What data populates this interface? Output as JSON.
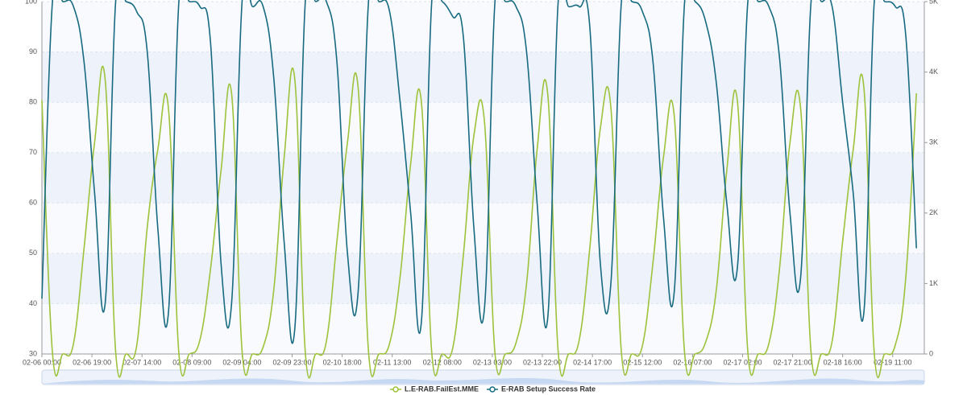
{
  "chart_data": {
    "type": "line",
    "x": [
      0,
      4,
      8,
      12,
      16,
      20,
      24,
      28,
      32,
      36,
      40,
      44,
      48,
      52,
      56,
      60,
      64,
      68,
      72,
      76,
      80,
      84,
      88,
      92,
      96,
      100,
      104,
      108,
      112,
      116,
      120,
      124,
      128,
      132,
      136,
      140,
      144,
      148,
      152,
      156,
      160,
      164,
      168,
      172,
      176,
      180,
      184,
      188,
      192,
      196,
      200,
      204,
      208,
      212,
      216,
      220,
      224,
      228,
      232,
      236,
      240,
      244,
      248,
      252,
      256,
      260,
      264,
      268,
      272,
      276,
      280,
      284,
      288,
      292,
      296,
      300,
      304,
      308,
      312,
      316,
      320,
      324,
      328,
      332
    ],
    "xlim": [
      0,
      335
    ],
    "xticks": [
      {
        "value": 0,
        "label": "02-06 00:00"
      },
      {
        "value": 19,
        "label": "02-06 19:00"
      },
      {
        "value": 38,
        "label": "02-07 14:00"
      },
      {
        "value": 57,
        "label": "02-08 09:00"
      },
      {
        "value": 76,
        "label": "02-09 04:00"
      },
      {
        "value": 95,
        "label": "02-09 23:00"
      },
      {
        "value": 114,
        "label": "02-10 18:00"
      },
      {
        "value": 133,
        "label": "02-11 13:00"
      },
      {
        "value": 152,
        "label": "02-12 08:00"
      },
      {
        "value": 171,
        "label": "02-13 03:00"
      },
      {
        "value": 190,
        "label": "02-13 22:00"
      },
      {
        "value": 209,
        "label": "02-14 17:00"
      },
      {
        "value": 228,
        "label": "02-15 12:00"
      },
      {
        "value": 247,
        "label": "02-16 07:00"
      },
      {
        "value": 266,
        "label": "02-17 02:00"
      },
      {
        "value": 285,
        "label": "02-17 21:00"
      },
      {
        "value": 304,
        "label": "02-18 16:00"
      },
      {
        "value": 323,
        "label": "02-19 11:00"
      }
    ],
    "ylim": [
      30,
      100
    ],
    "yticks": [
      30,
      40,
      50,
      60,
      70,
      80,
      90,
      100
    ],
    "y2lim": [
      0,
      5000
    ],
    "y2ticks": [
      0,
      {
        "value": 1000,
        "label": "1K"
      },
      {
        "value": 2000,
        "label": "2K"
      },
      {
        "value": 3000,
        "label": "3K"
      },
      {
        "value": 4000,
        "label": "4K"
      },
      {
        "value": 5000,
        "label": "5K"
      }
    ],
    "split_area": true,
    "series": [
      {
        "name": "L.E-RAB.FailEst.MME",
        "color": "#9dc23b",
        "axis": "y2",
        "values": [
          3600,
          20,
          0,
          150,
          1500,
          3000,
          3900,
          30,
          0,
          120,
          1800,
          2900,
          3500,
          10,
          0,
          200,
          1200,
          2600,
          3700,
          40,
          0,
          100,
          900,
          2800,
          3900,
          20,
          0,
          180,
          1600,
          3000,
          3800,
          30,
          0,
          150,
          1100,
          2700,
          3600,
          20,
          0,
          90,
          1400,
          3100,
          3300,
          10,
          0,
          160,
          1000,
          2900,
          3700,
          30,
          0,
          200,
          1500,
          3200,
          3500,
          20,
          0,
          120,
          1300,
          2800,
          3400,
          10,
          0,
          170,
          900,
          2600,
          3600,
          30,
          0,
          150,
          1200,
          3000,
          3500,
          20,
          0,
          180,
          1600,
          2900,
          3800,
          10,
          0,
          130,
          1100,
          3700
        ]
      },
      {
        "name": "E-RAB Setup Success Rate",
        "color": "#176a80",
        "axis": "y",
        "values": [
          41,
          100,
          100,
          99,
          88,
          62,
          40,
          100,
          100,
          98,
          90,
          55,
          38,
          100,
          100,
          99,
          92,
          48,
          40,
          100,
          99,
          99,
          85,
          52,
          35,
          100,
          100,
          100,
          88,
          50,
          42,
          100,
          100,
          98,
          80,
          58,
          36,
          100,
          100,
          97,
          93,
          55,
          39,
          100,
          100,
          99,
          90,
          60,
          37,
          100,
          99,
          99,
          95,
          48,
          44,
          100,
          100,
          98,
          88,
          57,
          42,
          100,
          100,
          96,
          84,
          60,
          47,
          100,
          100,
          99,
          89,
          58,
          45,
          100,
          100,
          99,
          80,
          62,
          38,
          100,
          100,
          99,
          93,
          51
        ]
      }
    ]
  }
}
